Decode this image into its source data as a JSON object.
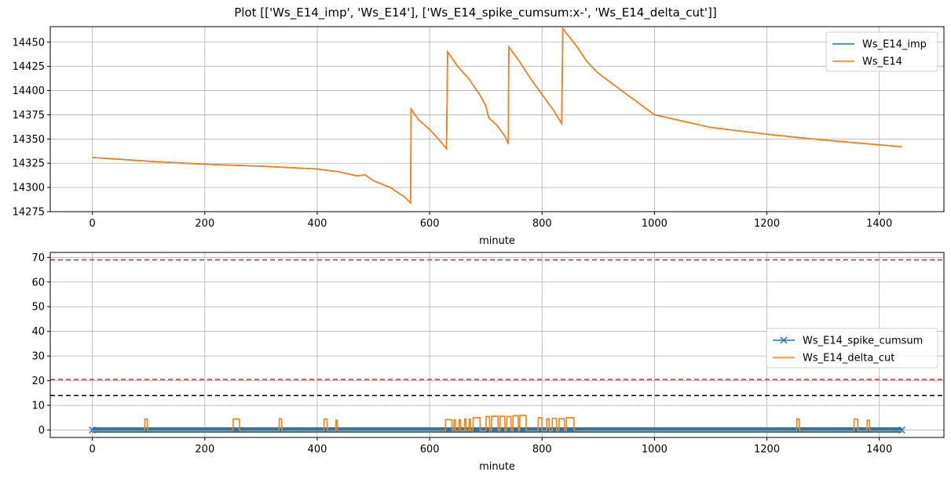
{
  "figure_title": "Plot [['Ws_E14_imp', 'Ws_E14'], ['Ws_E14_spike_cumsum:x-', 'Ws_E14_delta_cut']]",
  "colors": {
    "blue": "#1f77b4",
    "orange": "#ff7f0e",
    "red": "#d62728",
    "black": "#000000",
    "grid": "#b0b0b0"
  },
  "chart_data": [
    {
      "type": "line",
      "xlabel": "minute",
      "ylabel": "",
      "xlim": [
        -75,
        1515
      ],
      "ylim": [
        14275,
        14466
      ],
      "xticks": [
        0,
        200,
        400,
        600,
        800,
        1000,
        1200,
        1400
      ],
      "yticks": [
        14275,
        14300,
        14325,
        14350,
        14375,
        14400,
        14425,
        14450
      ],
      "grid": true,
      "legend_position": "top-right",
      "series": [
        {
          "name": "Ws_E14_imp",
          "color": "#1f77b4",
          "points": [
            [
              0,
              14331
            ],
            [
              100,
              14327
            ],
            [
              200,
              14324
            ],
            [
              300,
              14322
            ],
            [
              400,
              14319
            ],
            [
              440,
              14316
            ],
            [
              470,
              14312
            ],
            [
              485,
              14313
            ],
            [
              500,
              14307
            ],
            [
              530,
              14300
            ],
            [
              556,
              14290
            ],
            [
              566,
              14284
            ],
            [
              567,
              14381
            ],
            [
              580,
              14370
            ],
            [
              600,
              14360
            ],
            [
              620,
              14347
            ],
            [
              630,
              14340
            ],
            [
              632,
              14440
            ],
            [
              650,
              14425
            ],
            [
              670,
              14412
            ],
            [
              690,
              14395
            ],
            [
              700,
              14384
            ],
            [
              705,
              14372
            ],
            [
              720,
              14364
            ],
            [
              735,
              14352
            ],
            [
              740,
              14345
            ],
            [
              741,
              14445
            ],
            [
              760,
              14430
            ],
            [
              780,
              14412
            ],
            [
              800,
              14396
            ],
            [
              820,
              14380
            ],
            [
              835,
              14366
            ],
            [
              837,
              14464
            ],
            [
              860,
              14447
            ],
            [
              880,
              14430
            ],
            [
              900,
              14418
            ],
            [
              930,
              14405
            ],
            [
              1000,
              14375
            ],
            [
              1100,
              14362
            ],
            [
              1200,
              14355
            ],
            [
              1300,
              14349
            ],
            [
              1440,
              14342
            ]
          ]
        },
        {
          "name": "Ws_E14",
          "color": "#ff7f0e",
          "points": [
            [
              0,
              14331
            ],
            [
              100,
              14327
            ],
            [
              200,
              14324
            ],
            [
              300,
              14322
            ],
            [
              400,
              14319
            ],
            [
              440,
              14316
            ],
            [
              470,
              14312
            ],
            [
              485,
              14313
            ],
            [
              500,
              14307
            ],
            [
              530,
              14300
            ],
            [
              556,
              14290
            ],
            [
              566,
              14284
            ],
            [
              567,
              14381
            ],
            [
              580,
              14370
            ],
            [
              600,
              14360
            ],
            [
              620,
              14347
            ],
            [
              630,
              14340
            ],
            [
              632,
              14440
            ],
            [
              650,
              14425
            ],
            [
              670,
              14412
            ],
            [
              690,
              14395
            ],
            [
              700,
              14384
            ],
            [
              705,
              14372
            ],
            [
              720,
              14364
            ],
            [
              735,
              14352
            ],
            [
              740,
              14345
            ],
            [
              741,
              14445
            ],
            [
              760,
              14430
            ],
            [
              780,
              14412
            ],
            [
              800,
              14396
            ],
            [
              820,
              14380
            ],
            [
              835,
              14366
            ],
            [
              837,
              14464
            ],
            [
              860,
              14447
            ],
            [
              880,
              14430
            ],
            [
              900,
              14418
            ],
            [
              930,
              14405
            ],
            [
              1000,
              14375
            ],
            [
              1100,
              14362
            ],
            [
              1200,
              14355
            ],
            [
              1300,
              14349
            ],
            [
              1440,
              14342
            ]
          ]
        }
      ]
    },
    {
      "type": "line",
      "xlabel": "minute",
      "ylabel": "",
      "xlim": [
        -75,
        1515
      ],
      "ylim": [
        -3,
        72
      ],
      "xticks": [
        0,
        200,
        400,
        600,
        800,
        1000,
        1200,
        1400
      ],
      "yticks": [
        0,
        10,
        20,
        30,
        40,
        50,
        60,
        70
      ],
      "grid": true,
      "legend_position": "center-right",
      "hlines": [
        {
          "y": 69,
          "color": "#d62728",
          "style": "dashed"
        },
        {
          "y": 20.5,
          "color": "#d62728",
          "style": "dashed"
        },
        {
          "y": 14,
          "color": "#000000",
          "style": "dashed"
        }
      ],
      "series": [
        {
          "name": "Ws_E14_spike_cumsum",
          "color": "#1f77b4",
          "marker": "x",
          "value": 0,
          "x_range": [
            0,
            1440
          ]
        },
        {
          "name": "Ws_E14_delta_cut",
          "color": "#ff7f0e",
          "baseline": -0.3,
          "spikes": [
            [
              93,
              98,
              4.5
            ],
            [
              250,
              262,
              4.5
            ],
            [
              332,
              337,
              4.5
            ],
            [
              412,
              418,
              4.5
            ],
            [
              433,
              436,
              4.0
            ],
            [
              628,
              640,
              4.2
            ],
            [
              643,
              646,
              4.2
            ],
            [
              652,
              655,
              4.2
            ],
            [
              662,
              665,
              4.5
            ],
            [
              670,
              673,
              4.5
            ],
            [
              677,
              690,
              5.0
            ],
            [
              700,
              707,
              5.5
            ],
            [
              710,
              722,
              5.6
            ],
            [
              725,
              734,
              5.6
            ],
            [
              737,
              745,
              5.5
            ],
            [
              748,
              758,
              5.8
            ],
            [
              760,
              772,
              6.0
            ],
            [
              793,
              800,
              5.0
            ],
            [
              808,
              813,
              4.5
            ],
            [
              818,
              826,
              4.8
            ],
            [
              830,
              840,
              4.6
            ],
            [
              843,
              857,
              5.0
            ],
            [
              1253,
              1258,
              4.5
            ],
            [
              1355,
              1362,
              4.5
            ],
            [
              1378,
              1383,
              4.0
            ]
          ]
        }
      ]
    }
  ]
}
